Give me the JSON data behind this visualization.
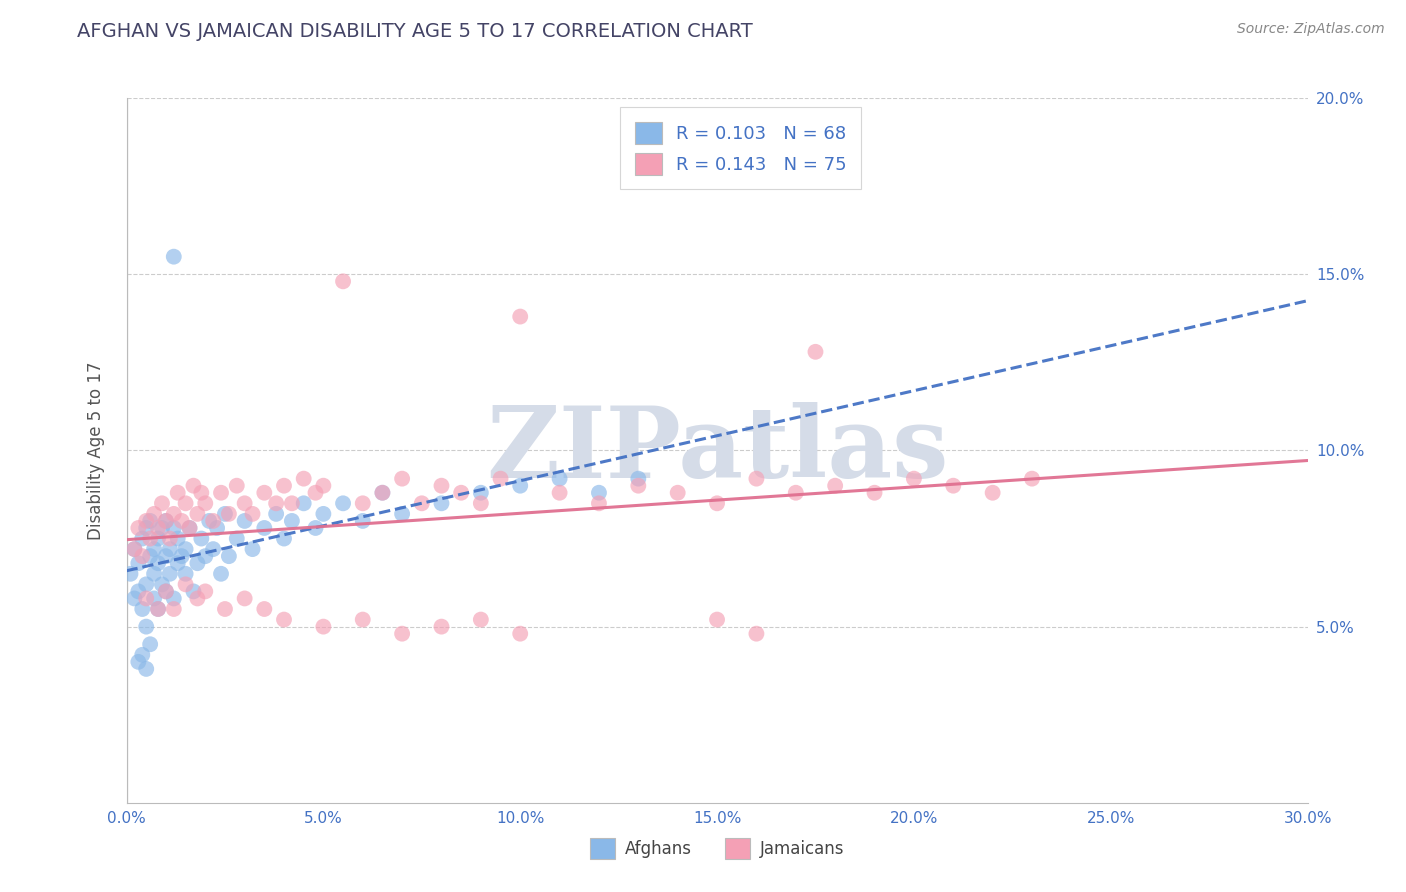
{
  "title": "AFGHAN VS JAMAICAN DISABILITY AGE 5 TO 17 CORRELATION CHART",
  "source_text": "Source: ZipAtlas.com",
  "ylabel": "Disability Age 5 to 17",
  "xlim": [
    0.0,
    0.3
  ],
  "ylim": [
    0.0,
    0.2
  ],
  "xticks": [
    0.0,
    0.05,
    0.1,
    0.15,
    0.2,
    0.25,
    0.3
  ],
  "xticklabels": [
    "0.0%",
    "5.0%",
    "10.0%",
    "15.0%",
    "20.0%",
    "25.0%",
    "30.0%"
  ],
  "yticks": [
    0.0,
    0.05,
    0.1,
    0.15,
    0.2
  ],
  "yticklabels_right": [
    "",
    "5.0%",
    "10.0%",
    "15.0%",
    "20.0%"
  ],
  "afghan_R": 0.103,
  "afghan_N": 68,
  "jamaican_R": 0.143,
  "jamaican_N": 75,
  "afghan_dot_color": "#8AB8E8",
  "jamaican_dot_color": "#F4A0B5",
  "afghan_line_color": "#4472C4",
  "jamaican_line_color": "#E07090",
  "legend_color": "#4472C4",
  "tick_color": "#4472C4",
  "background_color": "#FFFFFF",
  "grid_color": "#CCCCCC",
  "watermark_text": "ZIPatlas",
  "watermark_color": "#D5DCE8",
  "title_color": "#444466",
  "source_color": "#888888",
  "ylabel_color": "#555555",
  "afghan_x": [
    0.001,
    0.002,
    0.002,
    0.003,
    0.003,
    0.004,
    0.004,
    0.005,
    0.005,
    0.005,
    0.006,
    0.006,
    0.007,
    0.007,
    0.007,
    0.008,
    0.008,
    0.008,
    0.009,
    0.009,
    0.01,
    0.01,
    0.01,
    0.011,
    0.011,
    0.012,
    0.012,
    0.013,
    0.013,
    0.014,
    0.015,
    0.015,
    0.016,
    0.017,
    0.018,
    0.019,
    0.02,
    0.021,
    0.022,
    0.023,
    0.024,
    0.025,
    0.026,
    0.028,
    0.03,
    0.032,
    0.035,
    0.038,
    0.04,
    0.042,
    0.045,
    0.048,
    0.05,
    0.055,
    0.06,
    0.065,
    0.07,
    0.08,
    0.09,
    0.1,
    0.11,
    0.12,
    0.13,
    0.003,
    0.004,
    0.005,
    0.006,
    0.012
  ],
  "afghan_y": [
    0.065,
    0.058,
    0.072,
    0.06,
    0.068,
    0.055,
    0.075,
    0.062,
    0.078,
    0.05,
    0.07,
    0.08,
    0.065,
    0.072,
    0.058,
    0.068,
    0.075,
    0.055,
    0.078,
    0.062,
    0.07,
    0.08,
    0.06,
    0.072,
    0.065,
    0.078,
    0.058,
    0.068,
    0.075,
    0.07,
    0.072,
    0.065,
    0.078,
    0.06,
    0.068,
    0.075,
    0.07,
    0.08,
    0.072,
    0.078,
    0.065,
    0.082,
    0.07,
    0.075,
    0.08,
    0.072,
    0.078,
    0.082,
    0.075,
    0.08,
    0.085,
    0.078,
    0.082,
    0.085,
    0.08,
    0.088,
    0.082,
    0.085,
    0.088,
    0.09,
    0.092,
    0.088,
    0.092,
    0.04,
    0.042,
    0.038,
    0.045,
    0.155
  ],
  "jamaican_x": [
    0.002,
    0.003,
    0.004,
    0.005,
    0.006,
    0.007,
    0.008,
    0.009,
    0.01,
    0.011,
    0.012,
    0.013,
    0.014,
    0.015,
    0.016,
    0.017,
    0.018,
    0.019,
    0.02,
    0.022,
    0.024,
    0.026,
    0.028,
    0.03,
    0.032,
    0.035,
    0.038,
    0.04,
    0.042,
    0.045,
    0.048,
    0.05,
    0.055,
    0.06,
    0.065,
    0.07,
    0.075,
    0.08,
    0.085,
    0.09,
    0.095,
    0.1,
    0.11,
    0.12,
    0.13,
    0.14,
    0.15,
    0.16,
    0.17,
    0.18,
    0.19,
    0.2,
    0.21,
    0.22,
    0.23,
    0.005,
    0.008,
    0.01,
    0.012,
    0.015,
    0.018,
    0.02,
    0.025,
    0.03,
    0.035,
    0.04,
    0.05,
    0.06,
    0.07,
    0.08,
    0.09,
    0.1,
    0.15,
    0.16,
    0.175
  ],
  "jamaican_y": [
    0.072,
    0.078,
    0.07,
    0.08,
    0.075,
    0.082,
    0.078,
    0.085,
    0.08,
    0.075,
    0.082,
    0.088,
    0.08,
    0.085,
    0.078,
    0.09,
    0.082,
    0.088,
    0.085,
    0.08,
    0.088,
    0.082,
    0.09,
    0.085,
    0.082,
    0.088,
    0.085,
    0.09,
    0.085,
    0.092,
    0.088,
    0.09,
    0.148,
    0.085,
    0.088,
    0.092,
    0.085,
    0.09,
    0.088,
    0.085,
    0.092,
    0.138,
    0.088,
    0.085,
    0.09,
    0.088,
    0.085,
    0.092,
    0.088,
    0.09,
    0.088,
    0.092,
    0.09,
    0.088,
    0.092,
    0.058,
    0.055,
    0.06,
    0.055,
    0.062,
    0.058,
    0.06,
    0.055,
    0.058,
    0.055,
    0.052,
    0.05,
    0.052,
    0.048,
    0.05,
    0.052,
    0.048,
    0.052,
    0.048,
    0.128
  ]
}
